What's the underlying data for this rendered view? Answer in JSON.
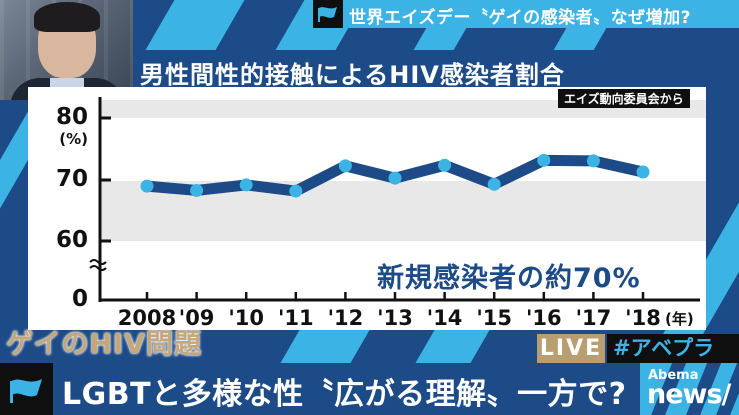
{
  "broadcast": {
    "top_headline": "世界エイズデー〝ゲイの感染者〟なぜ増加?",
    "segment_tag": "ゲイのHIV問題",
    "live_label": "LIVE",
    "hashtag": "#アベプラ",
    "bottom_headline": "LGBTと多様な性〝広がる理解〟一方で?",
    "logo_top": "Abema",
    "logo_bottom": "news/",
    "icons": [
      "flag-icon",
      "flag-icon"
    ]
  },
  "colors": {
    "navy": "#1d4b88",
    "cyan": "#3bb4e5",
    "gold": "#b99e72",
    "line": "#1d4b88",
    "marker": "#3bb4e5",
    "band": "#e8e8e8"
  },
  "chart_data": {
    "type": "line",
    "title": "男性間性的接触によるHIV感染者割合",
    "source": "エイズ動向委員会から",
    "categories": [
      "2008",
      "'09",
      "'10",
      "'11",
      "'12",
      "'13",
      "'14",
      "'15",
      "'16",
      "'17",
      "'18"
    ],
    "x_unit": "(年)",
    "series": [
      {
        "name": "男性間性的接触によるHIV感染者割合",
        "values": [
          69.0,
          68.3,
          69.2,
          68.2,
          72.3,
          70.3,
          72.4,
          69.3,
          73.2,
          73.1,
          71.3
        ]
      }
    ],
    "y_ticks": [
      "80",
      "70",
      "60",
      "0"
    ],
    "y_unit": "(%)",
    "ylim": [
      60,
      80
    ],
    "y_axis_break": true,
    "annotation": "新規感染者の約70%",
    "grid": "alternating horizontal bands"
  }
}
